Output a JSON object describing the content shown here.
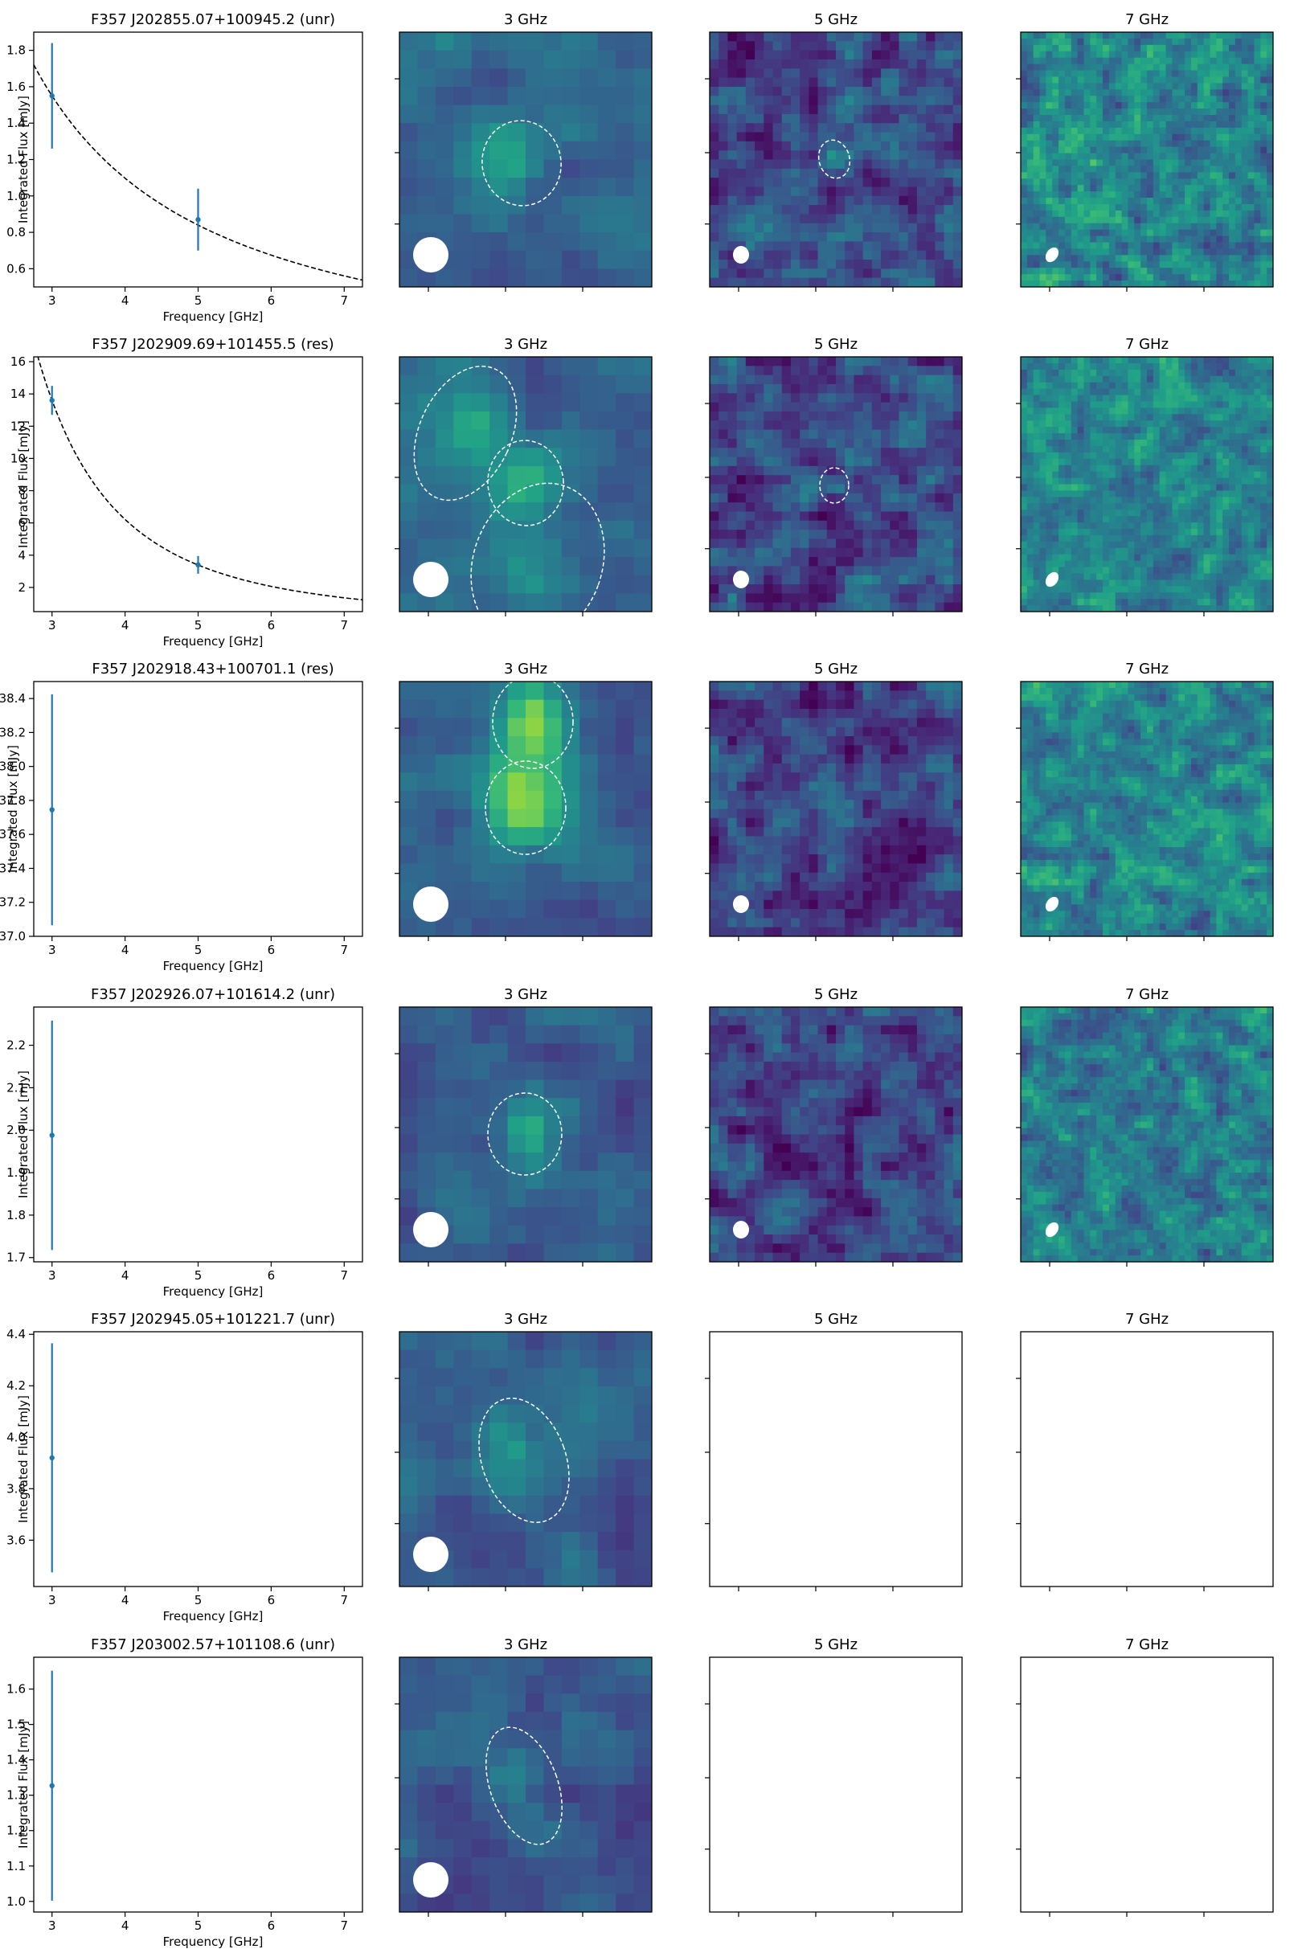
{
  "figure": {
    "image_column_titles": [
      "3 GHz",
      "5 GHz",
      "7 GHz"
    ],
    "colors": {
      "errorbar": "#1f77b4",
      "fit_line": "#000000",
      "ellipse": "#ffffff",
      "beam": "#ffffff",
      "image_colormap": "viridis"
    }
  },
  "chart_data": [
    {
      "type": "scatter",
      "title": "F357 J202855.07+100945.2 (unr)",
      "xlabel": "Frequency [GHz]",
      "ylabel": "Integrated Flux [mJy]",
      "xlim": [
        2.75,
        7.25
      ],
      "ylim": [
        0.5,
        1.9
      ],
      "xticks": [
        3,
        4,
        5,
        6,
        7
      ],
      "yticks": [
        0.6,
        0.8,
        1.0,
        1.2,
        1.4,
        1.6,
        1.8
      ],
      "ytick_labels": [
        "0.6",
        "0.8",
        "1.0",
        "1.2",
        "1.4",
        "1.6",
        "1.8"
      ],
      "points": [
        {
          "x": 3,
          "y": 1.55,
          "err": 0.29
        },
        {
          "x": 5,
          "y": 0.87,
          "err": 0.17
        }
      ],
      "fit": {
        "style": "dashed",
        "norm": 1.55,
        "ref": 3,
        "index": -1.2
      }
    },
    {
      "type": "scatter",
      "title": "F357 J202909.69+101455.5 (res)",
      "xlabel": "Frequency [GHz]",
      "ylabel": "Integrated Flux [mJy]",
      "xlim": [
        2.75,
        7.25
      ],
      "ylim": [
        0.5,
        16.3
      ],
      "xticks": [
        3,
        4,
        5,
        6,
        7
      ],
      "yticks": [
        2,
        4,
        6,
        8,
        10,
        12,
        14,
        16
      ],
      "ytick_labels": [
        "2",
        "4",
        "6",
        "8",
        "10",
        "12",
        "14",
        "16"
      ],
      "points": [
        {
          "x": 3,
          "y": 13.6,
          "err": 0.9
        },
        {
          "x": 5,
          "y": 3.4,
          "err": 0.55
        }
      ],
      "fit": {
        "style": "dashed",
        "norm": 13.6,
        "ref": 3,
        "index": -2.72
      }
    },
    {
      "type": "scatter",
      "title": "F357 J202918.43+100701.1 (res)",
      "xlabel": "Frequency [GHz]",
      "ylabel": "Integrated Flux [mJy]",
      "xlim": [
        2.75,
        7.25
      ],
      "ylim": [
        37.0,
        38.5
      ],
      "xticks": [
        3,
        4,
        5,
        6,
        7
      ],
      "yticks": [
        37.0,
        37.2,
        37.4,
        37.6,
        37.8,
        38.0,
        38.2,
        38.4
      ],
      "ytick_labels": [
        "37.0",
        "37.2",
        "37.4",
        "37.6",
        "37.8",
        "38.0",
        "38.2",
        "38.4"
      ],
      "points": [
        {
          "x": 3,
          "y": 37.745,
          "err": 0.68
        }
      ]
    },
    {
      "type": "scatter",
      "title": "F357 J202926.07+101614.2 (unr)",
      "xlabel": "Frequency [GHz]",
      "ylabel": "Integrated Flux [mJy]",
      "xlim": [
        2.75,
        7.25
      ],
      "ylim": [
        1.69,
        2.29
      ],
      "xticks": [
        3,
        4,
        5,
        6,
        7
      ],
      "yticks": [
        1.7,
        1.8,
        1.9,
        2.0,
        2.1,
        2.2
      ],
      "ytick_labels": [
        "1.7",
        "1.8",
        "1.9",
        "2.0",
        "2.1",
        "2.2"
      ],
      "points": [
        {
          "x": 3,
          "y": 1.988,
          "err": 0.27
        }
      ]
    },
    {
      "type": "scatter",
      "title": "F357 J202945.05+101221.7 (unr)",
      "xlabel": "Frequency [GHz]",
      "ylabel": "Integrated Flux [mJy]",
      "xlim": [
        2.75,
        7.25
      ],
      "ylim": [
        3.42,
        4.41
      ],
      "xticks": [
        3,
        4,
        5,
        6,
        7
      ],
      "yticks": [
        3.6,
        3.8,
        4.0,
        4.2,
        4.4
      ],
      "ytick_labels": [
        "3.6",
        "3.8",
        "4.0",
        "4.2",
        "4.4"
      ],
      "points": [
        {
          "x": 3,
          "y": 3.92,
          "err": 0.445
        }
      ]
    },
    {
      "type": "scatter",
      "title": "F357 J203002.57+101108.6 (unr)",
      "xlabel": "Frequency [GHz]",
      "ylabel": "Integrated Flux [mJy]",
      "xlim": [
        2.75,
        7.25
      ],
      "ylim": [
        0.97,
        1.69
      ],
      "xticks": [
        3,
        4,
        5,
        6,
        7
      ],
      "yticks": [
        1.0,
        1.1,
        1.2,
        1.3,
        1.4,
        1.5,
        1.6
      ],
      "ytick_labels": [
        "1.0",
        "1.1",
        "1.2",
        "1.3",
        "1.4",
        "1.5",
        "1.6"
      ],
      "points": [
        {
          "x": 3,
          "y": 1.327,
          "err": 0.325
        }
      ]
    }
  ]
}
